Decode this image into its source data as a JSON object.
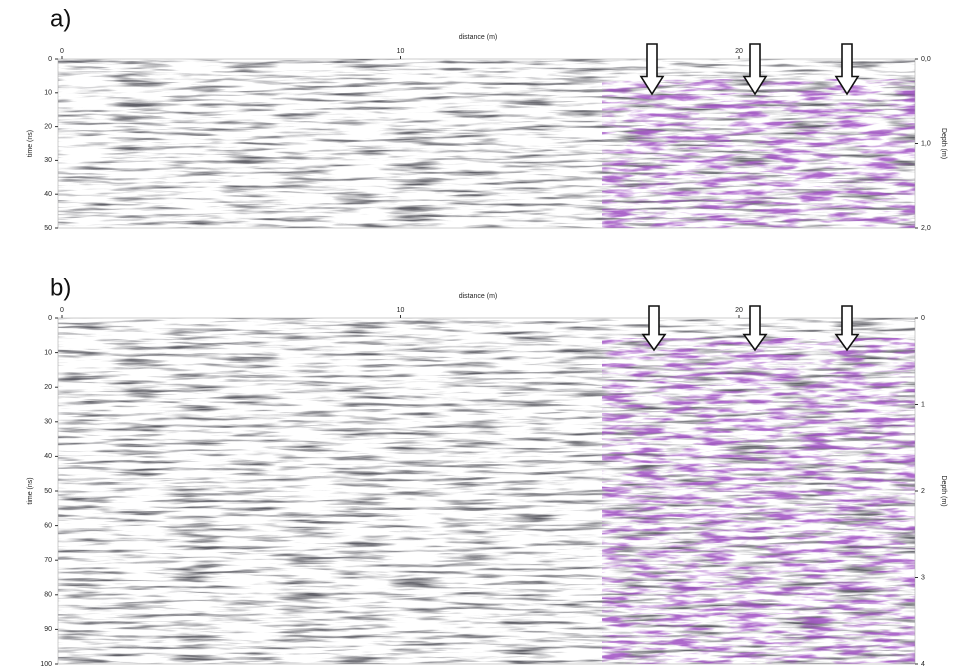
{
  "panels": [
    {
      "label": "a)",
      "x_title": "distance (m)",
      "y_title": "time (ns)",
      "y2_title": "Depth (m)",
      "xticks": [
        0,
        10,
        20
      ],
      "yticks": [
        0,
        10,
        20,
        30,
        40,
        50
      ],
      "y2ticks": [
        "0,0",
        "1,0",
        "2,0"
      ]
    },
    {
      "label": "b)",
      "x_title": "distance (m)",
      "y_title": "time (ns)",
      "y2_title": "Depth (m)",
      "xticks": [
        0,
        10,
        20
      ],
      "yticks": [
        0,
        10,
        20,
        30,
        40,
        50,
        60,
        70,
        80,
        90,
        100
      ],
      "y2ticks": [
        0,
        1,
        2,
        3,
        4
      ]
    }
  ]
}
